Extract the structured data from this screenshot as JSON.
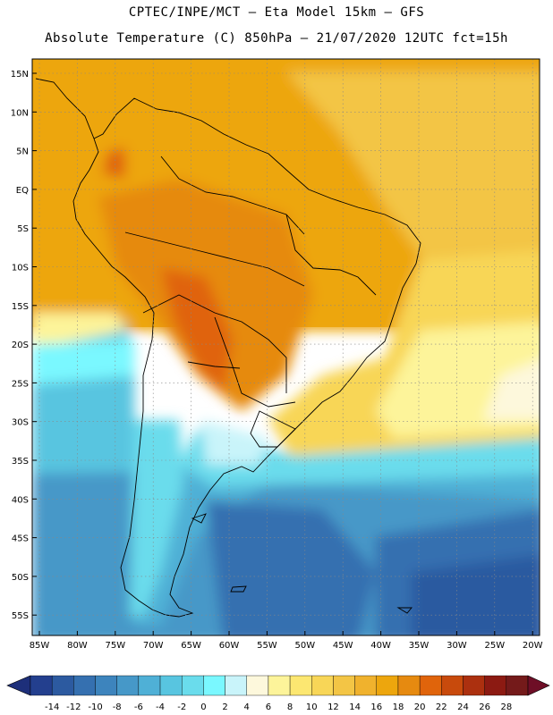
{
  "title_line1": "CPTEC/INPE/MCT –  Eta Model 15km – GFS",
  "title_line2": "Absolute Temperature (C) 850hPa – 21/07/2020 12UTC fct=15h",
  "lat_labels": [
    "15N",
    "10N",
    "5N",
    "EQ",
    "5S",
    "10S",
    "15S",
    "20S",
    "25S",
    "30S",
    "35S",
    "40S",
    "45S",
    "50S",
    "55S"
  ],
  "lon_labels": [
    "85W",
    "80W",
    "75W",
    "70W",
    "65W",
    "60W",
    "55W",
    "50W",
    "45W",
    "40W",
    "35W",
    "30W",
    "25W",
    "20W"
  ],
  "colorbar": {
    "tick_labels": [
      "-14",
      "-12",
      "-10",
      "-8",
      "-6",
      "-4",
      "-2",
      "0",
      "2",
      "4",
      "6",
      "8",
      "10",
      "12",
      "14",
      "16",
      "18",
      "20",
      "22",
      "24",
      "26",
      "28"
    ],
    "colors": [
      "#233f8e",
      "#2c5aa0",
      "#3570b0",
      "#3d84bd",
      "#4698c8",
      "#4fb0d6",
      "#58c5e0",
      "#6adcec",
      "#7af8ff",
      "#c9f4fa",
      "#fdf8dc",
      "#fdf49a",
      "#fce771",
      "#f8d657",
      "#f3c545",
      "#f0b22d",
      "#eda60d",
      "#e68a10",
      "#e0640b",
      "#c84a0c",
      "#ac300f",
      "#8c1a12",
      "#741a1a"
    ],
    "under_color": "#1d2f7a",
    "over_color": "#6e0e26"
  }
}
